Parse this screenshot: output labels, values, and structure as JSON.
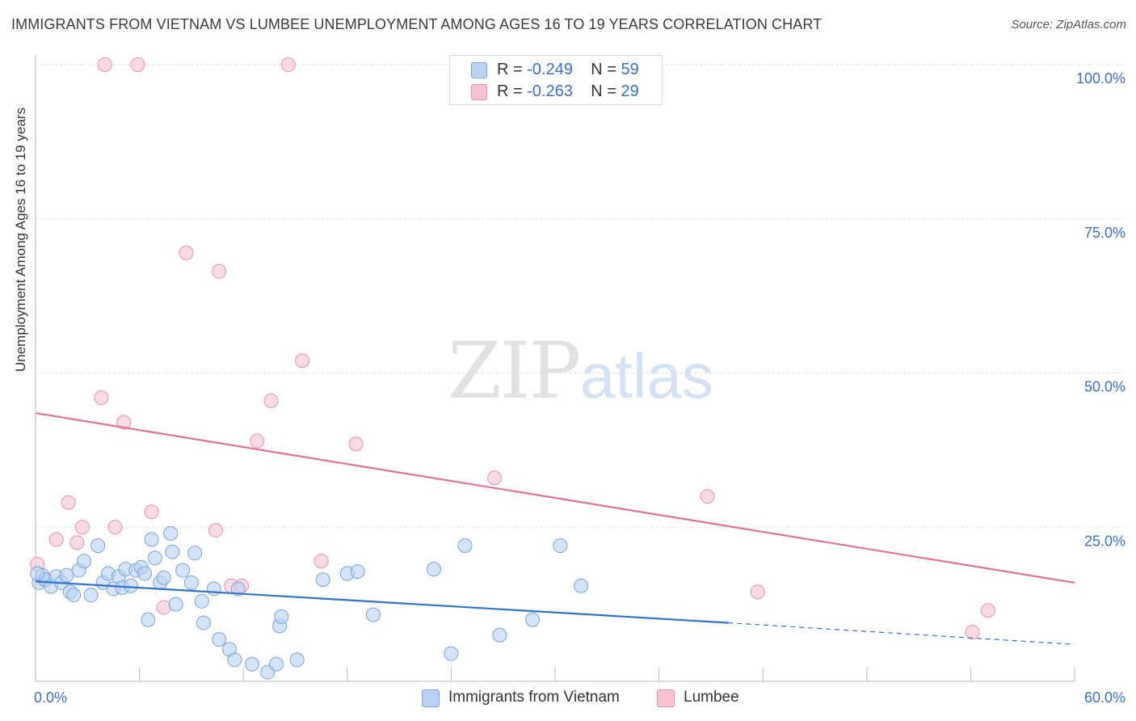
{
  "title": "IMMIGRANTS FROM VIETNAM VS LUMBEE UNEMPLOYMENT AMONG AGES 16 TO 19 YEARS CORRELATION CHART",
  "source": "Source: ZipAtlas.com",
  "watermark": {
    "zip": "ZIP",
    "atlas": "atlas"
  },
  "legend_top": [
    {
      "r_label": "R = ",
      "r_value": "-0.249",
      "n_label": "N = ",
      "n_value": "59"
    },
    {
      "r_label": "R = ",
      "r_value": "-0.263",
      "n_label": "N = ",
      "n_value": "29"
    }
  ],
  "colors": {
    "blue_fill": "#b9d2f3",
    "blue_edge": "#7aa3dd",
    "blue_line": "#2f74cc",
    "pink_fill": "#f8c3d2",
    "pink_edge": "#ea90ac",
    "pink_line": "#e0709a",
    "tick_text": "#3a6fc9",
    "grid": "#dcdcdc"
  },
  "chart_data": {
    "type": "scatter",
    "title": "IMMIGRANTS FROM VIETNAM VS LUMBEE UNEMPLOYMENT AMONG AGES 16 TO 19 YEARS CORRELATION CHART",
    "xlabel": "",
    "ylabel": "Unemployment Among Ages 16 to 19 years",
    "xlim": [
      0,
      60
    ],
    "ylim": [
      0,
      100
    ],
    "x_tick_labels": [
      "0.0%",
      "60.0%"
    ],
    "y_tick_labels": [
      "25.0%",
      "50.0%",
      "75.0%",
      "100.0%"
    ],
    "y_ticks": [
      25,
      50,
      75,
      100
    ],
    "grid": true,
    "legend_position": "bottom",
    "series": [
      {
        "name": "Immigrants from Vietnam",
        "color": "#7aa3dd",
        "points": [
          [
            0.2,
            16.0
          ],
          [
            0.4,
            17.2
          ],
          [
            0.6,
            16.5
          ],
          [
            0.9,
            15.4
          ],
          [
            1.2,
            17.0
          ],
          [
            1.5,
            16.0
          ],
          [
            1.8,
            17.2
          ],
          [
            2.0,
            14.5
          ],
          [
            2.2,
            14.0
          ],
          [
            2.5,
            18.0
          ],
          [
            2.8,
            19.5
          ],
          [
            3.2,
            14.0
          ],
          [
            3.6,
            22.0
          ],
          [
            3.9,
            16.0
          ],
          [
            4.2,
            17.5
          ],
          [
            4.5,
            15.0
          ],
          [
            4.8,
            17.0
          ],
          [
            5.0,
            15.2
          ],
          [
            5.2,
            18.2
          ],
          [
            5.5,
            15.5
          ],
          [
            5.8,
            18.0
          ],
          [
            6.1,
            18.5
          ],
          [
            6.3,
            17.5
          ],
          [
            6.5,
            10.0
          ],
          [
            6.7,
            23.0
          ],
          [
            6.9,
            20.0
          ],
          [
            7.2,
            16.0
          ],
          [
            7.4,
            16.8
          ],
          [
            7.8,
            24.0
          ],
          [
            7.9,
            21.0
          ],
          [
            8.1,
            12.5
          ],
          [
            8.5,
            18.0
          ],
          [
            9.0,
            16.0
          ],
          [
            9.2,
            20.8
          ],
          [
            9.6,
            13.0
          ],
          [
            9.7,
            9.5
          ],
          [
            10.3,
            15.0
          ],
          [
            10.6,
            6.8
          ],
          [
            11.2,
            5.2
          ],
          [
            11.5,
            3.5
          ],
          [
            11.7,
            15.0
          ],
          [
            12.5,
            2.8
          ],
          [
            13.4,
            1.5
          ],
          [
            13.9,
            2.8
          ],
          [
            14.1,
            9.0
          ],
          [
            14.2,
            10.5
          ],
          [
            15.1,
            3.5
          ],
          [
            16.6,
            16.5
          ],
          [
            18.0,
            17.5
          ],
          [
            18.6,
            17.8
          ],
          [
            19.5,
            10.8
          ],
          [
            23.0,
            18.2
          ],
          [
            24.0,
            4.5
          ],
          [
            24.8,
            22.0
          ],
          [
            26.8,
            7.5
          ],
          [
            28.7,
            10.0
          ],
          [
            30.3,
            22.0
          ],
          [
            31.5,
            15.5
          ],
          [
            0.1,
            17.5
          ]
        ],
        "trend": {
          "x": [
            0,
            40
          ],
          "y": [
            16.2,
            9.5
          ],
          "dashed_to": [
            60,
            6.0
          ]
        }
      },
      {
        "name": "Lumbee",
        "color": "#ea90ac",
        "points": [
          [
            0.1,
            19.0
          ],
          [
            0.5,
            16.5
          ],
          [
            1.2,
            23.0
          ],
          [
            1.9,
            29.0
          ],
          [
            2.4,
            22.5
          ],
          [
            2.7,
            25.0
          ],
          [
            3.8,
            46.0
          ],
          [
            4.0,
            100.0
          ],
          [
            4.6,
            25.0
          ],
          [
            5.1,
            42.0
          ],
          [
            5.9,
            100.0
          ],
          [
            6.7,
            27.5
          ],
          [
            7.4,
            12.0
          ],
          [
            8.7,
            69.5
          ],
          [
            10.4,
            24.5
          ],
          [
            10.6,
            66.5
          ],
          [
            11.3,
            15.5
          ],
          [
            11.9,
            15.5
          ],
          [
            12.8,
            39.0
          ],
          [
            13.6,
            45.5
          ],
          [
            14.6,
            100.0
          ],
          [
            15.4,
            52.0
          ],
          [
            16.5,
            19.5
          ],
          [
            18.5,
            38.5
          ],
          [
            26.5,
            33.0
          ],
          [
            38.8,
            30.0
          ],
          [
            41.7,
            14.5
          ],
          [
            54.1,
            8.0
          ],
          [
            55.0,
            11.5
          ]
        ],
        "trend": {
          "x": [
            0,
            60
          ],
          "y": [
            43.5,
            16.0
          ]
        }
      }
    ]
  }
}
